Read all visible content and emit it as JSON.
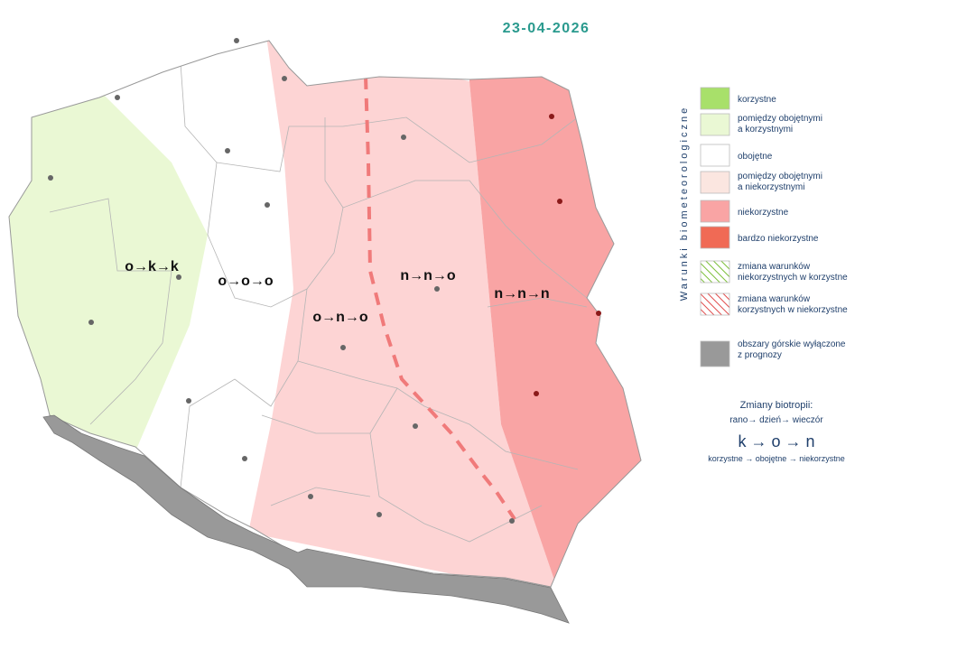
{
  "date": "23-04-2026",
  "regions": [
    {
      "label": "o→k→k"
    },
    {
      "label": "o→o→o"
    },
    {
      "label": "o→n→o"
    },
    {
      "label": "n→n→o"
    },
    {
      "label": "n→n→n"
    }
  ],
  "legend": {
    "title": "Warunki biometeorologiczne",
    "items": [
      {
        "lines": [
          "korzystne"
        ]
      },
      {
        "lines": [
          "pomiędzy obojętnymi",
          "a korzystnymi"
        ]
      },
      {
        "lines": [
          "obojętne"
        ]
      },
      {
        "lines": [
          "pomiędzy obojętnymi",
          "a niekorzystnymi"
        ]
      },
      {
        "lines": [
          "niekorzystne"
        ]
      },
      {
        "lines": [
          "bardzo niekorzystne"
        ]
      },
      {
        "lines": [
          "zmiana warunków",
          "niekorzystnych w korzystne"
        ]
      },
      {
        "lines": [
          "zmiana warunków",
          "korzystnych w niekorzystne"
        ]
      },
      {
        "lines": [
          "obszary górskie wyłączone",
          "z prognozy"
        ]
      }
    ]
  },
  "biotropy": {
    "title": "Zmiany biotropii:",
    "times": "rano→ dzień→ wieczór",
    "example": "k → o → n",
    "example_legend": "korzystne → obojętne → niekorzystne"
  }
}
